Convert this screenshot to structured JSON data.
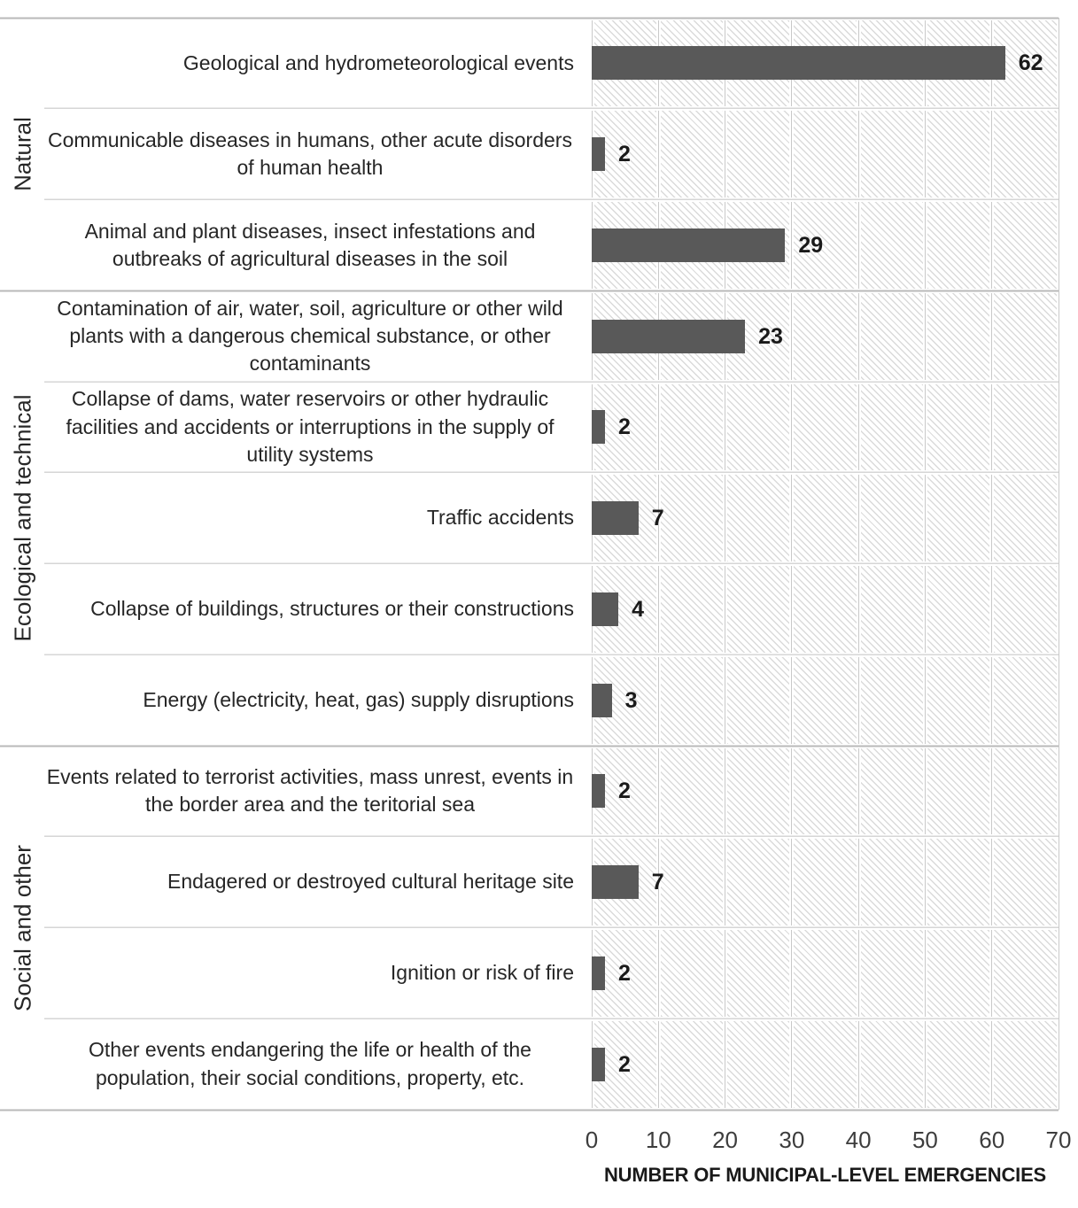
{
  "chart_data": {
    "type": "bar",
    "orientation": "horizontal",
    "title": "",
    "xlabel": "NUMBER OF MUNICIPAL-LEVEL EMERGENCIES",
    "ylabel": "",
    "xlim": [
      0,
      70
    ],
    "x_ticks": [
      "0",
      "10",
      "20",
      "30",
      "40",
      "50",
      "60",
      "70"
    ],
    "grid": true,
    "legend": "none",
    "bar_color": "#595959",
    "value_label_color": "#1a1a1a",
    "plot_fill_pattern": "light-downward-diagonal-hatch",
    "groups": [
      {
        "label": "Natural",
        "items": [
          {
            "label": "Geological and hydrometeorological events",
            "value": 62
          },
          {
            "label": "Communicable diseases in humans, other acute disorders of human health",
            "value": 2
          },
          {
            "label": "Animal and plant diseases, insect infestations and outbreaks of agricultural diseases in the soil",
            "value": 29
          }
        ]
      },
      {
        "label": "Ecological and technical",
        "items": [
          {
            "label": "Contamination of air, water, soil, agriculture or other wild plants with a dangerous chemical substance,  or other contaminants",
            "value": 23
          },
          {
            "label": "Collapse of dams, water reservoirs or other hydraulic facilities and accidents or interruptions in the supply of utility systems",
            "value": 2
          },
          {
            "label": "Traffic accidents",
            "value": 7
          },
          {
            "label": "Collapse of buildings, structures or their constructions",
            "value": 4
          },
          {
            "label": "Energy (electricity, heat, gas) supply disruptions",
            "value": 3
          }
        ]
      },
      {
        "label": "Social and other",
        "items": [
          {
            "label": "Events related to terrorist activities, mass unrest, events in the border area and the teritorial sea",
            "value": 2
          },
          {
            "label": "Endagered or destroyed cultural heritage site",
            "value": 7
          },
          {
            "label": "Ignition or risk of fire",
            "value": 2
          },
          {
            "label": "Other events endangering the life or health of the population, their social conditions, property, etc.",
            "value": 2
          }
        ]
      }
    ]
  }
}
